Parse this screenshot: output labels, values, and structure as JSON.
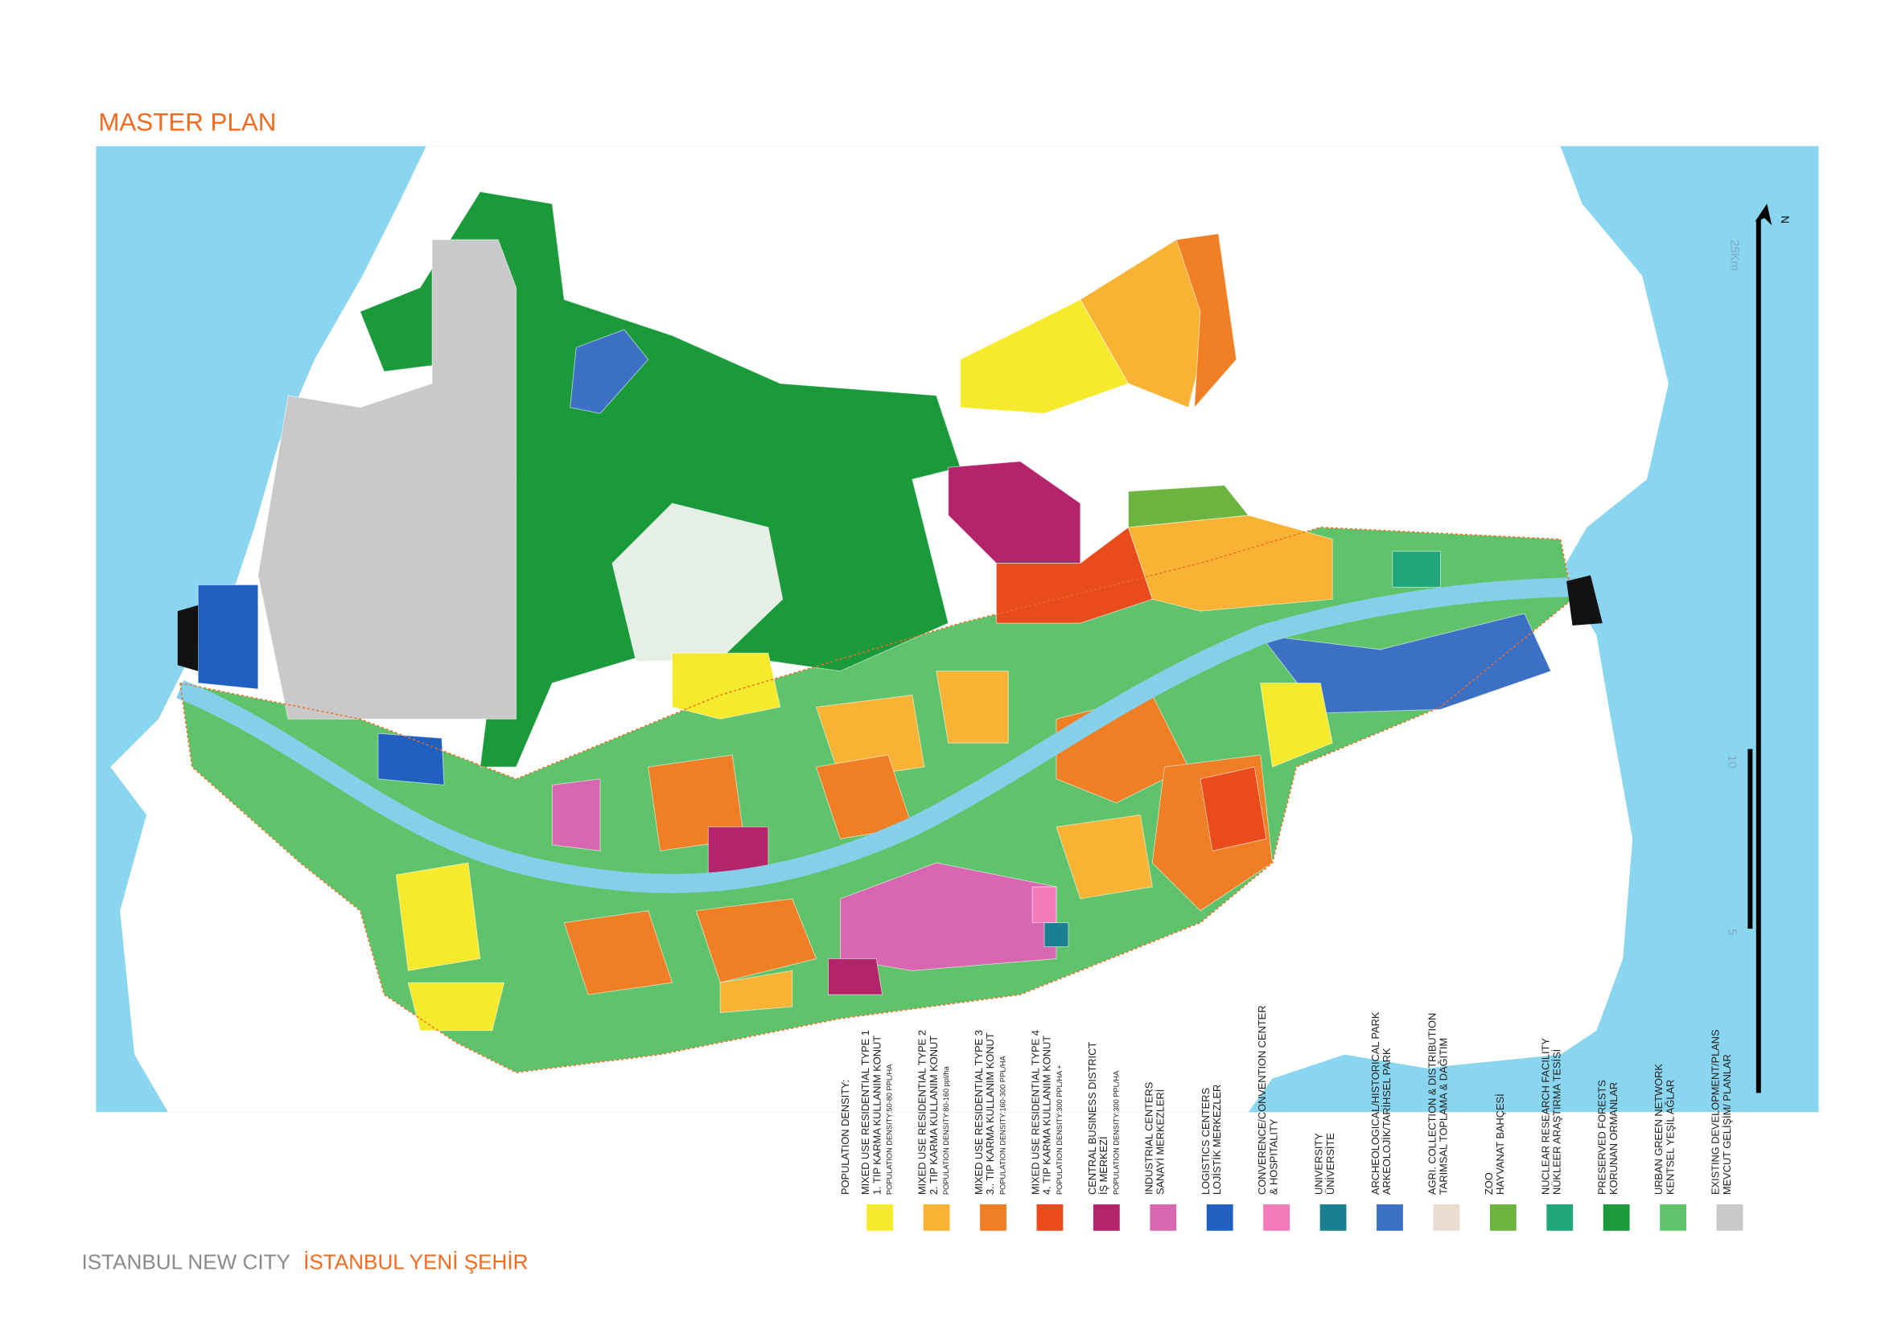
{
  "header": {
    "title": "MASTER PLAN"
  },
  "footer": {
    "english": "ISTANBUL NEW CITY",
    "turkish": "İSTANBUL YENİ ŞEHİR"
  },
  "map": {
    "north": "N",
    "scale_labels": [
      "25Km",
      "10",
      "5"
    ]
  },
  "legend": {
    "title": "POPULATION DENSITY:",
    "items": [
      {
        "lines": [
          "MIXED USE RESIDENTIAL TYPE 1",
          "1. TIP KARMA KULLANIM KONUT",
          "POPULATION DENSITY:50-80 PPL/HA"
        ],
        "color": "#f6ea2c"
      },
      {
        "lines": [
          "MIXED USE RESIDENTIAL TYPE 2",
          "2. TIP KARMA KULLANIM KONUT",
          "POPULATION DENSITY:80-160 ppl/ha"
        ],
        "color": "#f8b335"
      },
      {
        "lines": [
          "MIXED USE RESIDENTIAL TYPE 3",
          "3.. TIP KARMA KULLANIM KONUT",
          "POPULATION DENSITY:160-300 PPL/HA"
        ],
        "color": "#f07e24"
      },
      {
        "lines": [
          "MIXED USE RESIDENTIAL TYPE 4",
          "4. TIP KARMA KULLANIM KONUT",
          "POPULATION DENSITY:300 PPL/HA +"
        ],
        "color": "#ea4b1d"
      },
      {
        "lines": [
          "CENTRAL BUSINESS DISTRICT",
          "İŞ MERKEZİ",
          "POPULATION DENSITY:300 PPL/HA"
        ],
        "color": "#b3246b"
      },
      {
        "lines": [
          "INDUSTRIAL CENTERS",
          "SANAYİ MERKEZLERİ"
        ],
        "color": "#d866b1"
      },
      {
        "lines": [
          "LOGISTICS CENTERS",
          "LOJİSTİK MERKEZLER"
        ],
        "color": "#1f60c0"
      },
      {
        "lines": [
          "CONVERENCE/CONVENTION CENTER",
          "& HOSPITALITY"
        ],
        "color": "#f27bb9"
      },
      {
        "lines": [
          "UNIVERSITY",
          "ÜNİVERSİTE"
        ],
        "color": "#1a7f8f"
      },
      {
        "lines": [
          "ARCHEOLOGICAL/HISTORICAL PARK",
          "ARKEOLOJİK/TARİHSEL PARK"
        ],
        "color": "#3b70c5"
      },
      {
        "lines": [
          "AGRI. COLLECTION & DISTRIBUTION",
          "TARIMSAL TOPLAMA & DAĞITIM"
        ],
        "color": "#eadccf"
      },
      {
        "lines": [
          "ZOO",
          "HAYVANAT BAHÇESİ"
        ],
        "color": "#6cb340"
      },
      {
        "lines": [
          "NUCLEAR RESEARCH FACILITY",
          "NÜKLEER ARAŞTIRMA TESİSİ"
        ],
        "color": "#1fa67b"
      },
      {
        "lines": [
          "PRESERVED FORESTS",
          "KORUNAN ORMANLAR"
        ],
        "color": "#1b9a3b"
      },
      {
        "lines": [
          "URBAN GREEN NETWORK",
          "KENTSEL YEŞİL AĞLAR"
        ],
        "color": "#5ec36b"
      },
      {
        "lines": [
          "EXISTING DEVELOPMENT/PLANS",
          "MEVCUT GELİŞİM/ PLANLAR"
        ],
        "color": "#c9c9c9"
      }
    ]
  }
}
